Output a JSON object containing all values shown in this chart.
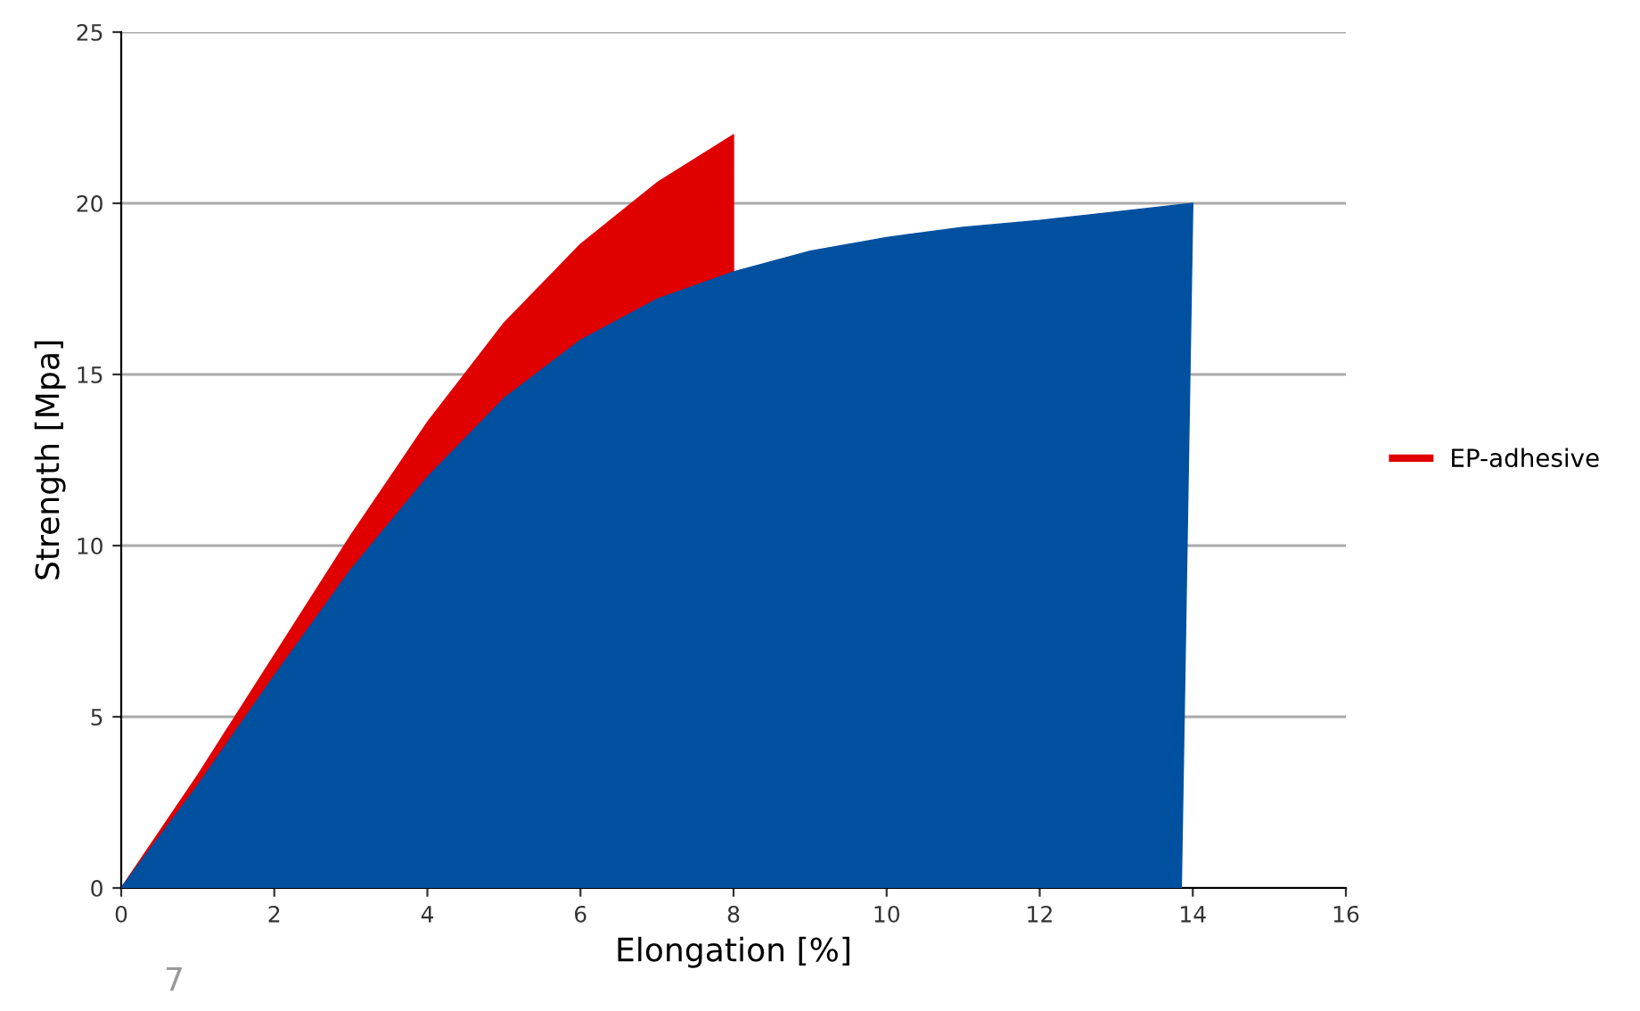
{
  "chart_data": {
    "type": "area",
    "xlabel": "Elongation [%]",
    "ylabel": "Strength [Mpa]",
    "series": [
      {
        "color": "#0050a0",
        "x": [
          0,
          1,
          2,
          3,
          4,
          5,
          6,
          7,
          8,
          9,
          10,
          11,
          12,
          13,
          14,
          13.85
        ],
        "values": [
          0,
          3,
          6.2,
          9.3,
          12,
          14.3,
          16,
          17.2,
          18,
          18.6,
          19,
          19.3,
          19.5,
          19.75,
          20,
          0
        ]
      },
      {
        "name": "EP-adhesive",
        "color": "#e00000",
        "x": [
          0,
          1,
          2,
          3,
          4,
          5,
          6,
          7,
          8,
          8
        ],
        "values": [
          0,
          3.3,
          6.8,
          10.3,
          13.6,
          16.5,
          18.8,
          20.6,
          22,
          0
        ]
      }
    ],
    "xlim": [
      0,
      16
    ],
    "xticks": [
      0,
      2,
      4,
      6,
      8,
      10,
      12,
      14,
      16
    ],
    "ylim": [
      0,
      25
    ],
    "yticks": [
      0,
      5,
      10,
      15,
      20,
      25
    ],
    "grid": "y",
    "legend": "right",
    "annotations": [
      "7"
    ]
  }
}
